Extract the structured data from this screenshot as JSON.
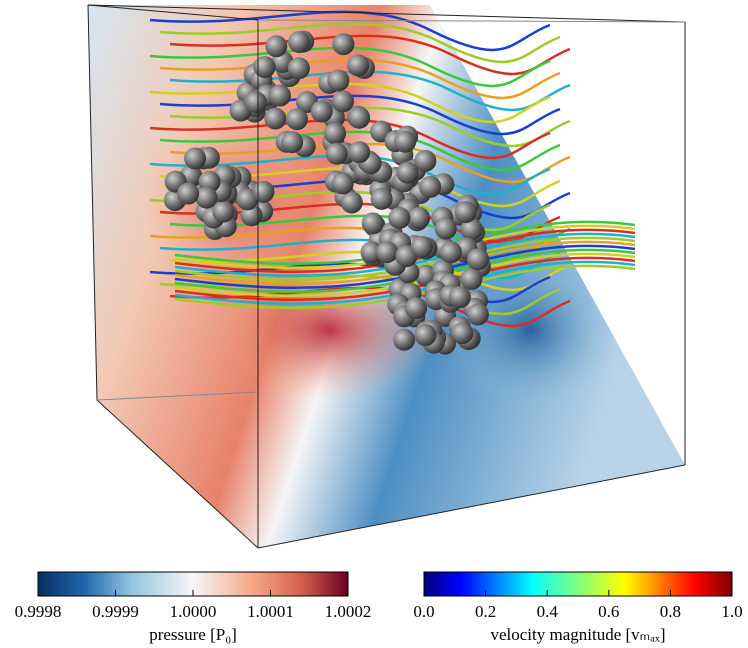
{
  "colorbars": [
    {
      "label": "pressure [P₀]",
      "lim": [
        0.9998,
        1.0002
      ],
      "ticks": [
        0.9998,
        0.9999,
        {
          "value": 1,
          "label": "1.0000"
        },
        1.0001,
        1.0002
      ]
    },
    {
      "label": "velocity magnitude [vₘₐₓ]",
      "lim": [
        0,
        1
      ],
      "ticks": [
        {
          "value": 0,
          "label": "0.0"
        },
        0.2,
        0.4,
        0.6,
        0.8,
        {
          "value": 1,
          "label": "1.0"
        }
      ]
    }
  ]
}
